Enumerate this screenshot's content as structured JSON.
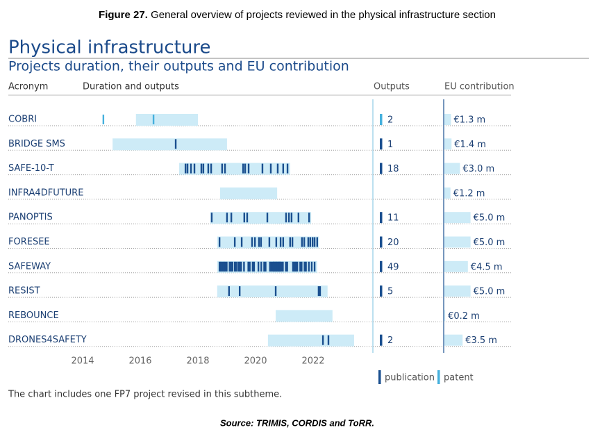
{
  "chart_data": {
    "type": "timeline",
    "caption_label": "Figure 27.",
    "caption": "General overview of projects reviewed in the physical infrastructure section",
    "title": "Physical infrastructure",
    "subtitle": "Projects duration, their outputs and EU contribution",
    "column_headers": [
      "Acronym",
      "Duration and outputs",
      "Outputs",
      "EU contribution"
    ],
    "categories": [
      "COBRI",
      "BRIDGE SMS",
      "SAFE-10-T",
      "INFRA4DFUTURE",
      "PANOPTIS",
      "FORESEE",
      "SAFEWAY",
      "RESIST",
      "REBOUNCE",
      "DRONES4SAFETY"
    ],
    "xlim": [
      2013.5,
      2023.5
    ],
    "xticks": [
      2014,
      2016,
      2018,
      2020,
      2022
    ],
    "start": [
      2015.85,
      2015.04,
      2017.35,
      2018.77,
      2018.43,
      2018.67,
      2018.67,
      2018.67,
      2020.7,
      2020.43
    ],
    "end": [
      2018.0,
      2019.01,
      2021.2,
      2020.75,
      2021.93,
      2022.2,
      2022.14,
      2022.5,
      2022.67,
      2023.42
    ],
    "duration_color": "#cdebf7",
    "publications": [
      [],
      [
        2017.23
      ],
      [
        2017.57,
        2017.64,
        2017.76,
        2017.88,
        2018.12,
        2018.19,
        2018.36,
        2018.46,
        2018.84,
        2018.94,
        2019.57,
        2019.64,
        2019.76,
        2020.24,
        2020.53,
        2020.77,
        2020.96,
        2021.11
      ],
      [],
      [
        2018.48,
        2019.01,
        2019.16,
        2019.61,
        2019.71,
        2020.41,
        2021.06,
        2021.16,
        2021.25,
        2021.49,
        2021.86
      ],
      [
        2018.75,
        2019.28,
        2019.52,
        2019.88,
        2019.98,
        2020.12,
        2020.19,
        2020.48,
        2020.72,
        2020.87,
        2020.96,
        2021.2,
        2021.28,
        2021.61,
        2021.69,
        2021.83,
        2021.9,
        2021.98,
        2022.05,
        2022.14
      ],
      [
        2018.75,
        2018.8,
        2018.85,
        2018.9,
        2018.95,
        2019.0,
        2019.1,
        2019.15,
        2019.2,
        2019.28,
        2019.33,
        2019.4,
        2019.45,
        2019.5,
        2019.6,
        2019.75,
        2019.8,
        2019.9,
        2019.95,
        2020.1,
        2020.2,
        2020.3,
        2020.35,
        2020.5,
        2020.55,
        2020.6,
        2020.63,
        2020.66,
        2020.7,
        2020.73,
        2020.76,
        2020.8,
        2020.83,
        2020.86,
        2020.9,
        2020.95,
        2021.05,
        2021.1,
        2021.3,
        2021.35,
        2021.4,
        2021.45,
        2021.55,
        2021.6,
        2021.7,
        2021.75,
        2021.85,
        2021.95,
        2022.05
      ],
      [
        2019.08,
        2019.45,
        2020.7,
        2022.19,
        2022.24
      ],
      [],
      [
        2022.34,
        2022.53
      ]
    ],
    "patents": [
      [
        2014.72,
        2016.46
      ],
      [],
      [],
      [],
      [],
      [],
      [],
      [],
      [],
      []
    ],
    "outputs": [
      2,
      1,
      18,
      null,
      11,
      20,
      49,
      5,
      null,
      2
    ],
    "eu_contribution": {
      "values": [
        1.3,
        1.4,
        3.0,
        1.2,
        5.0,
        5.0,
        4.5,
        5.0,
        0.2,
        3.5
      ],
      "value_labels": [
        "€1.3 m",
        "€1.4 m",
        "€3.0 m",
        "€1.2 m",
        "€5.0 m",
        "€5.0 m",
        "€4.5 m",
        "€5.0 m",
        "€0.2 m",
        "€3.5 m"
      ],
      "color": "#cdebf7"
    },
    "legend": [
      {
        "name": "publication",
        "color": "#1a4f8f"
      },
      {
        "name": "patent",
        "color": "#45b0dd"
      }
    ],
    "footnote": "The chart includes one FP7 project revised in this subtheme.",
    "source": "Source: TRIMIS, CORDIS and ToRR."
  }
}
